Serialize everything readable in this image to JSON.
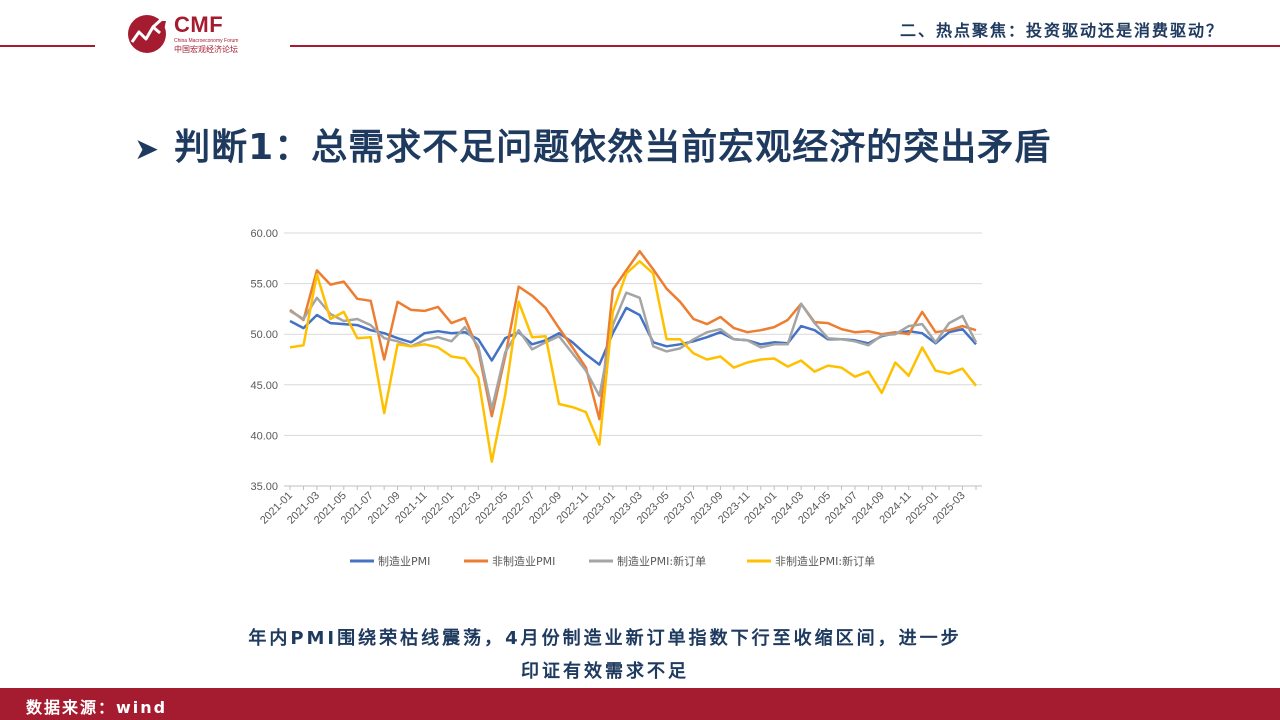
{
  "header": {
    "brand": "CMF",
    "brand_sub": "China Macroeconomy Forum",
    "brand_cn": "中国宏观经济论坛",
    "section_title": "二、热点聚焦：投资驱动还是消费驱动？"
  },
  "headline": {
    "arrow_icon": "arrow-right-icon",
    "text": "判断1：总需求不足问题依然当前宏观经济的突出矛盾"
  },
  "caption": {
    "line1": "年内PMI围绕荣枯线震荡，4月份制造业新订单指数下行至收缩区间，进一步",
    "line2": "印证有效需求不足"
  },
  "footer": {
    "source": "数据来源：wind"
  },
  "colors": {
    "accent_red": "#a51c30",
    "title_navy": "#1f3a5f"
  },
  "chart_data": {
    "type": "line",
    "title": "",
    "xlabel": "",
    "ylabel": "",
    "ylim": [
      35,
      60
    ],
    "yticks": [
      "35.00",
      "40.00",
      "45.00",
      "50.00",
      "55.00",
      "60.00"
    ],
    "grid": true,
    "legend_position": "bottom",
    "x": [
      "2021-01",
      "2021-02",
      "2021-03",
      "2021-04",
      "2021-05",
      "2021-06",
      "2021-07",
      "2021-08",
      "2021-09",
      "2021-10",
      "2021-11",
      "2021-12",
      "2022-01",
      "2022-02",
      "2022-03",
      "2022-04",
      "2022-05",
      "2022-06",
      "2022-07",
      "2022-08",
      "2022-09",
      "2022-10",
      "2022-11",
      "2022-12",
      "2023-01",
      "2023-02",
      "2023-03",
      "2023-04",
      "2023-05",
      "2023-06",
      "2023-07",
      "2023-08",
      "2023-09",
      "2023-10",
      "2023-11",
      "2023-12",
      "2024-01",
      "2024-02",
      "2024-03",
      "2024-04",
      "2024-05",
      "2024-06",
      "2024-07",
      "2024-08",
      "2024-09",
      "2024-10",
      "2024-11",
      "2024-12",
      "2025-01",
      "2025-02",
      "2025-03",
      "2025-04"
    ],
    "xtick_labels": [
      "2021-01",
      "2021-03",
      "2021-05",
      "2021-07",
      "2021-09",
      "2021-11",
      "2022-01",
      "2022-03",
      "2022-05",
      "2022-07",
      "2022-09",
      "2022-11",
      "2023-01",
      "2023-03",
      "2023-05",
      "2023-07",
      "2023-09",
      "2023-11",
      "2024-01",
      "2024-03",
      "2024-05",
      "2024-07",
      "2024-09",
      "2024-11",
      "2025-01",
      "2025-03"
    ],
    "series": [
      {
        "name": "制造业PMI",
        "color": "#4472c4",
        "values": [
          51.3,
          50.6,
          51.9,
          51.1,
          51.0,
          50.9,
          50.4,
          50.1,
          49.6,
          49.2,
          50.1,
          50.3,
          50.1,
          50.2,
          49.5,
          47.4,
          49.6,
          50.2,
          49.0,
          49.4,
          50.1,
          49.2,
          48.0,
          47.0,
          50.1,
          52.6,
          51.9,
          49.2,
          48.8,
          49.0,
          49.3,
          49.7,
          50.2,
          49.5,
          49.4,
          49.0,
          49.2,
          49.1,
          50.8,
          50.4,
          49.5,
          49.5,
          49.4,
          49.1,
          49.8,
          50.1,
          50.3,
          50.1,
          49.1,
          50.2,
          50.5,
          49.0
        ]
      },
      {
        "name": "非制造业PMI",
        "color": "#ed7d31",
        "values": [
          52.4,
          51.4,
          56.3,
          54.9,
          55.2,
          53.5,
          53.3,
          47.5,
          53.2,
          52.4,
          52.3,
          52.7,
          51.1,
          51.6,
          48.4,
          41.9,
          47.8,
          54.7,
          53.8,
          52.6,
          50.6,
          48.7,
          46.7,
          41.6,
          54.4,
          56.3,
          58.2,
          56.4,
          54.5,
          53.2,
          51.5,
          51.0,
          51.7,
          50.6,
          50.2,
          50.4,
          50.7,
          51.4,
          53.0,
          51.2,
          51.1,
          50.5,
          50.2,
          50.3,
          50.0,
          50.2,
          50.0,
          52.2,
          50.2,
          50.4,
          50.8,
          50.4
        ]
      },
      {
        "name": "制造业PMI:新订单",
        "color": "#a5a5a5",
        "values": [
          52.3,
          51.5,
          53.6,
          52.0,
          51.3,
          51.5,
          50.9,
          49.6,
          49.3,
          48.8,
          49.4,
          49.7,
          49.3,
          50.7,
          48.8,
          42.6,
          48.2,
          50.4,
          48.5,
          49.2,
          49.8,
          48.1,
          46.4,
          43.9,
          50.9,
          54.1,
          53.6,
          48.8,
          48.3,
          48.6,
          49.5,
          50.2,
          50.5,
          49.5,
          49.4,
          48.7,
          49.0,
          49.0,
          53.0,
          51.1,
          49.6,
          49.5,
          49.3,
          48.9,
          49.9,
          50.0,
          50.8,
          51.0,
          49.2,
          51.1,
          51.8,
          49.2
        ]
      },
      {
        "name": "非制造业PMI:新订单",
        "color": "#ffc000",
        "values": [
          48.7,
          48.9,
          55.9,
          51.5,
          52.2,
          49.6,
          49.7,
          42.2,
          49.0,
          48.8,
          49.0,
          48.7,
          47.8,
          47.6,
          45.7,
          37.4,
          44.0,
          53.2,
          49.7,
          49.8,
          43.1,
          42.8,
          42.3,
          39.1,
          52.2,
          56.0,
          57.2,
          56.0,
          49.5,
          49.5,
          48.1,
          47.5,
          47.8,
          46.7,
          47.2,
          47.5,
          47.6,
          46.8,
          47.4,
          46.3,
          46.9,
          46.7,
          45.8,
          46.3,
          44.2,
          47.2,
          45.9,
          48.7,
          46.4,
          46.1,
          46.6,
          44.9
        ]
      }
    ]
  }
}
